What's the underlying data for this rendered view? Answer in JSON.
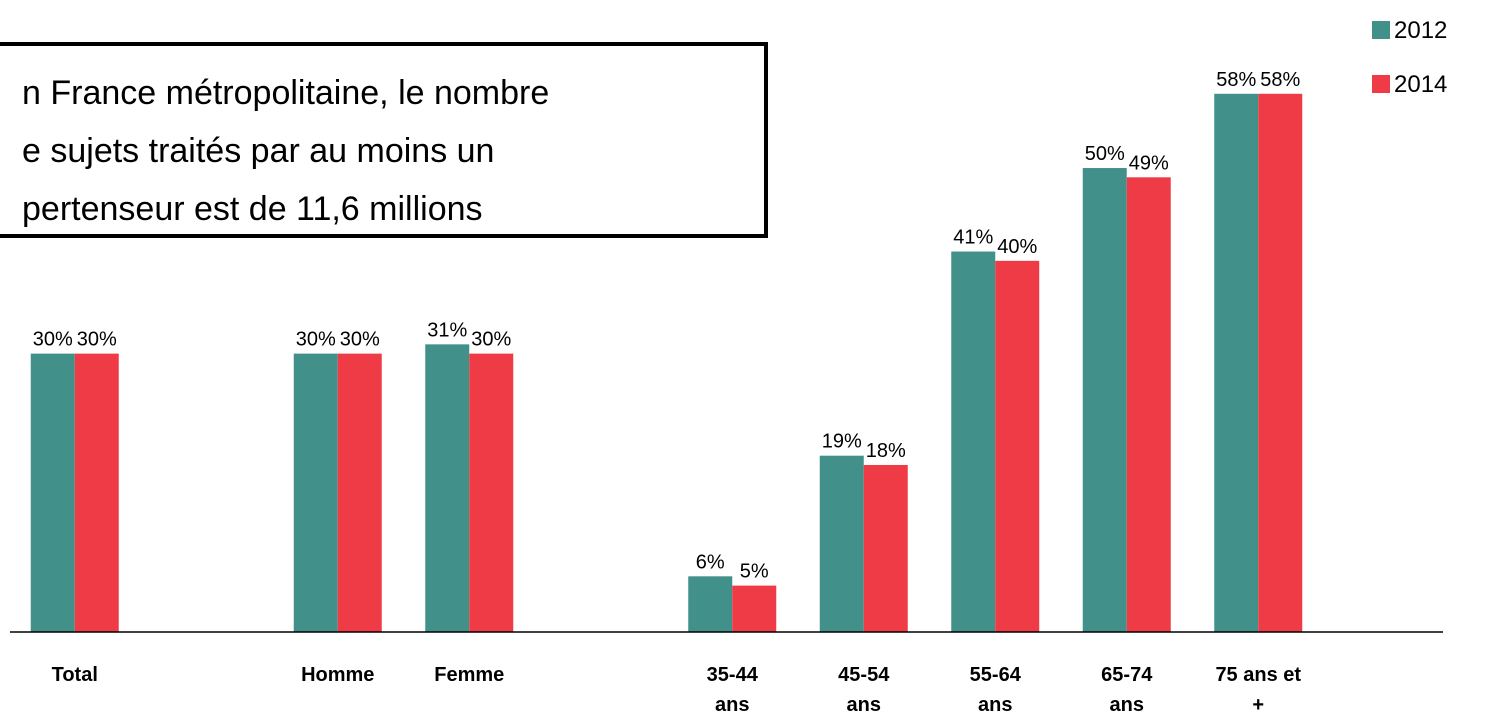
{
  "chart_data": {
    "type": "bar",
    "categories": [
      "Total",
      null,
      "Homme",
      "Femme",
      null,
      "35-44\nans",
      "45-54\nans",
      "55-64\nans",
      "65-74\nans",
      "75 ans et\n+",
      null
    ],
    "series": [
      {
        "name": "2012",
        "color": "#41918a",
        "values": [
          30,
          null,
          30,
          31,
          null,
          6,
          19,
          41,
          50,
          58,
          null
        ],
        "value_labels": [
          "30%",
          null,
          "30%",
          "31%",
          null,
          "6%",
          "19%",
          "41%",
          "50%",
          "58%",
          null
        ]
      },
      {
        "name": "2014",
        "color": "#ef3b46",
        "values": [
          30,
          null,
          30,
          30,
          null,
          5,
          18,
          40,
          49,
          58,
          null
        ],
        "value_labels": [
          "30%",
          null,
          "30%",
          "30%",
          null,
          "5%",
          "18%",
          "40%",
          "49%",
          "58%",
          null
        ]
      }
    ],
    "ylim": [
      0,
      68
    ],
    "annotation": "n France métropolitaine, le nombre\ne sujets traités par au moins un\npertenseur est de 11,6 millions"
  }
}
